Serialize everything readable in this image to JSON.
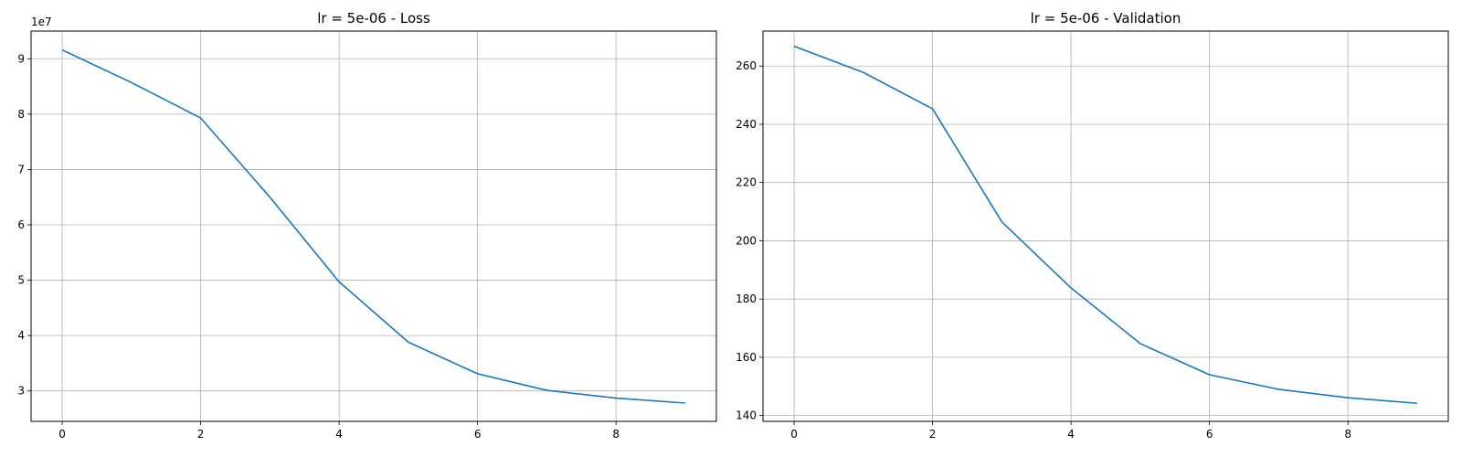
{
  "chart_data": [
    {
      "type": "line",
      "title": "lr = 5e-06 - Loss",
      "xlabel": "",
      "ylabel": "",
      "y_offset_label": "1e7",
      "xlim": [
        -0.45,
        9.45
      ],
      "ylim": [
        24500000,
        95000000
      ],
      "x_ticks": [
        0,
        2,
        4,
        6,
        8
      ],
      "y_ticks": [
        30000000,
        40000000,
        50000000,
        60000000,
        70000000,
        80000000,
        90000000
      ],
      "y_tick_labels": [
        "3",
        "4",
        "5",
        "6",
        "7",
        "8",
        "9"
      ],
      "grid": true,
      "color": "#1f77b4",
      "series": [
        {
          "x": [
            0,
            1,
            2,
            3,
            4,
            5,
            6,
            7,
            8,
            9
          ],
          "values": [
            91600000,
            85700000,
            79300000,
            65000000,
            49700000,
            38800000,
            33100000,
            30100000,
            28700000,
            27800000
          ]
        }
      ]
    },
    {
      "type": "line",
      "title": "lr = 5e-06 - Validation",
      "xlabel": "",
      "ylabel": "",
      "xlim": [
        -0.45,
        9.45
      ],
      "ylim": [
        138,
        272
      ],
      "x_ticks": [
        0,
        2,
        4,
        6,
        8
      ],
      "y_ticks": [
        140,
        160,
        180,
        200,
        220,
        240,
        260
      ],
      "y_tick_labels": [
        "140",
        "160",
        "180",
        "200",
        "220",
        "240",
        "260"
      ],
      "grid": true,
      "color": "#1f77b4",
      "series": [
        {
          "x": [
            0,
            1,
            2,
            3,
            4,
            5,
            6,
            7,
            8,
            9
          ],
          "values": [
            266.8,
            257.8,
            245.3,
            206.5,
            183.8,
            164.7,
            154.0,
            149.0,
            146.1,
            144.2
          ]
        }
      ]
    }
  ]
}
